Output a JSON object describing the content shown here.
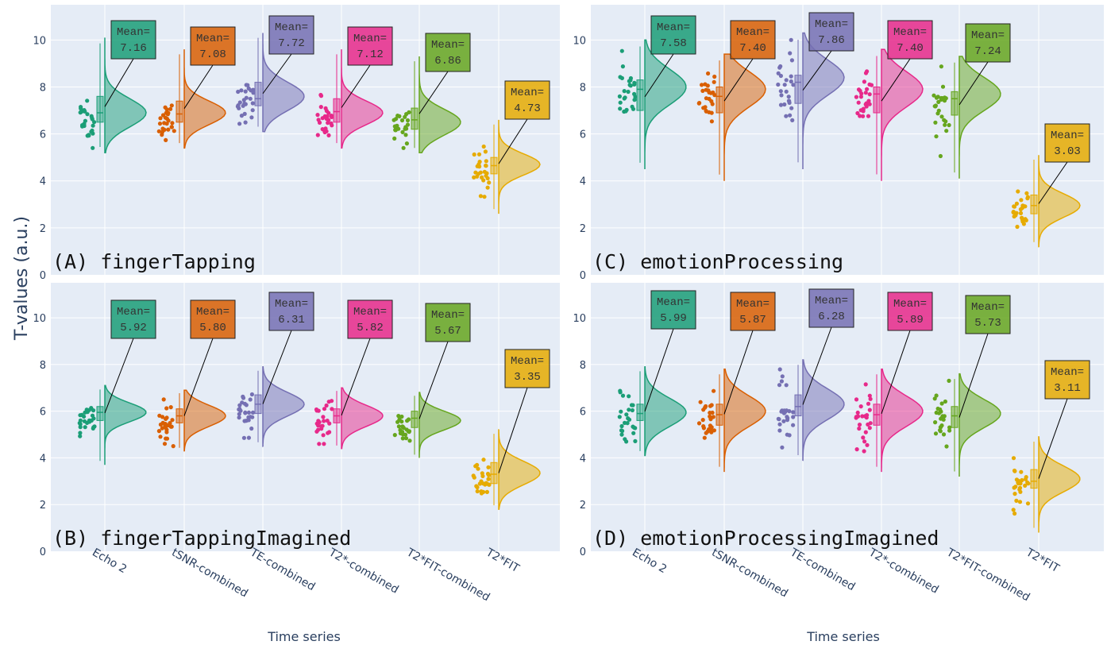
{
  "ylabel": "T-values (a.u.)",
  "xlabel": "Time series",
  "annotation_prefix": "Mean=",
  "chart_data": [
    {
      "type": "violin",
      "title": "(A) fingerTapping",
      "categories": [
        "Echo 2",
        "tSNR-combined",
        "TE-combined",
        "T2*-combined",
        "T2*FIT-combined",
        "T2*FIT"
      ],
      "colors": [
        "#1b9e77",
        "#d95f02",
        "#7570b3",
        "#e7298a",
        "#66a61e",
        "#e6ab02"
      ],
      "means": [
        7.16,
        7.08,
        7.72,
        7.12,
        6.86,
        4.73
      ],
      "medians": [
        6.9,
        6.85,
        7.5,
        6.95,
        6.6,
        4.65
      ],
      "q1": [
        6.5,
        6.5,
        7.2,
        6.5,
        6.2,
        4.3
      ],
      "q3": [
        7.6,
        7.4,
        8.2,
        7.5,
        7.1,
        5.0
      ],
      "range": [
        [
          5.2,
          10.1
        ],
        [
          5.4,
          9.6
        ],
        [
          6.1,
          10.3
        ],
        [
          5.4,
          9.6
        ],
        [
          5.2,
          9.3
        ],
        [
          2.6,
          6.6
        ]
      ],
      "mode": [
        6.9,
        6.9,
        7.6,
        6.9,
        6.5,
        4.7
      ],
      "spread": [
        0.6,
        0.5,
        0.6,
        0.5,
        0.55,
        0.45
      ],
      "ylim": [
        0,
        11.5
      ],
      "yticks": [
        0,
        2,
        4,
        6,
        8,
        10
      ],
      "xlabel": "",
      "ylabel": "T-values (a.u.)"
    },
    {
      "type": "violin",
      "title": "(B) fingerTappingImagined",
      "categories": [
        "Echo 2",
        "tSNR-combined",
        "TE-combined",
        "T2*-combined",
        "T2*FIT-combined",
        "T2*FIT"
      ],
      "colors": [
        "#1b9e77",
        "#d95f02",
        "#7570b3",
        "#e7298a",
        "#66a61e",
        "#e6ab02"
      ],
      "means": [
        5.92,
        5.8,
        6.31,
        5.82,
        5.67,
        3.35
      ],
      "medians": [
        5.95,
        5.8,
        6.3,
        5.8,
        5.7,
        3.3
      ],
      "q1": [
        5.6,
        5.5,
        5.9,
        5.5,
        5.3,
        2.9
      ],
      "q3": [
        6.2,
        6.1,
        6.7,
        6.1,
        6.0,
        3.8
      ],
      "range": [
        [
          3.7,
          7.1
        ],
        [
          4.3,
          6.9
        ],
        [
          4.5,
          7.9
        ],
        [
          4.4,
          7.0
        ],
        [
          4.0,
          6.8
        ],
        [
          1.8,
          5.2
        ]
      ],
      "mode": [
        5.95,
        5.8,
        6.3,
        5.8,
        5.6,
        3.35
      ],
      "spread": [
        0.4,
        0.45,
        0.5,
        0.45,
        0.4,
        0.5
      ],
      "ylim": [
        0,
        11.5
      ],
      "yticks": [
        0,
        2,
        4,
        6,
        8,
        10
      ],
      "xlabel": "Time series",
      "ylabel": "T-values (a.u.)"
    },
    {
      "type": "violin",
      "title": "(C) emotionProcessing",
      "categories": [
        "Echo 2",
        "tSNR-combined",
        "TE-combined",
        "T2*-combined",
        "T2*FIT-combined",
        "T2*FIT"
      ],
      "colors": [
        "#1b9e77",
        "#d95f02",
        "#7570b3",
        "#e7298a",
        "#66a61e",
        "#e6ab02"
      ],
      "means": [
        7.58,
        7.4,
        7.86,
        7.4,
        7.24,
        3.03
      ],
      "medians": [
        7.9,
        7.6,
        8.2,
        7.7,
        7.5,
        2.95
      ],
      "q1": [
        7.0,
        6.9,
        7.3,
        6.9,
        6.8,
        2.6
      ],
      "q3": [
        8.3,
        8.0,
        8.5,
        8.0,
        7.8,
        3.4
      ],
      "range": [
        [
          4.5,
          10.0
        ],
        [
          4.0,
          9.4
        ],
        [
          4.5,
          10.3
        ],
        [
          4.0,
          9.6
        ],
        [
          4.1,
          9.3
        ],
        [
          1.2,
          5.1
        ]
      ],
      "mode": [
        8.0,
        7.9,
        8.4,
        7.9,
        7.7,
        2.95
      ],
      "spread": [
        0.75,
        0.75,
        0.75,
        0.75,
        0.7,
        0.5
      ],
      "ylim": [
        0,
        11.5
      ],
      "yticks": [
        0,
        2,
        4,
        6,
        8,
        10
      ],
      "xlabel": "",
      "ylabel": ""
    },
    {
      "type": "violin",
      "title": "(D) emotionProcessingImagined",
      "categories": [
        "Echo 2",
        "tSNR-combined",
        "TE-combined",
        "T2*-combined",
        "T2*FIT-combined",
        "T2*FIT"
      ],
      "colors": [
        "#1b9e77",
        "#d95f02",
        "#7570b3",
        "#e7298a",
        "#66a61e",
        "#e6ab02"
      ],
      "means": [
        5.99,
        5.87,
        6.28,
        5.89,
        5.73,
        3.11
      ],
      "medians": [
        5.9,
        5.85,
        6.2,
        5.85,
        5.8,
        3.0
      ],
      "q1": [
        5.6,
        5.4,
        5.8,
        5.4,
        5.3,
        2.7
      ],
      "q3": [
        6.3,
        6.3,
        6.7,
        6.3,
        6.2,
        3.5
      ],
      "range": [
        [
          4.1,
          7.9
        ],
        [
          3.4,
          7.8
        ],
        [
          3.9,
          8.2
        ],
        [
          3.4,
          7.8
        ],
        [
          3.2,
          7.6
        ],
        [
          0.8,
          4.9
        ]
      ],
      "mode": [
        5.95,
        6.0,
        6.3,
        6.0,
        5.9,
        3.1
      ],
      "spread": [
        0.6,
        0.65,
        0.65,
        0.65,
        0.6,
        0.55
      ],
      "ylim": [
        0,
        11.5
      ],
      "yticks": [
        0,
        2,
        4,
        6,
        8,
        10
      ],
      "xlabel": "Time series",
      "ylabel": ""
    }
  ]
}
